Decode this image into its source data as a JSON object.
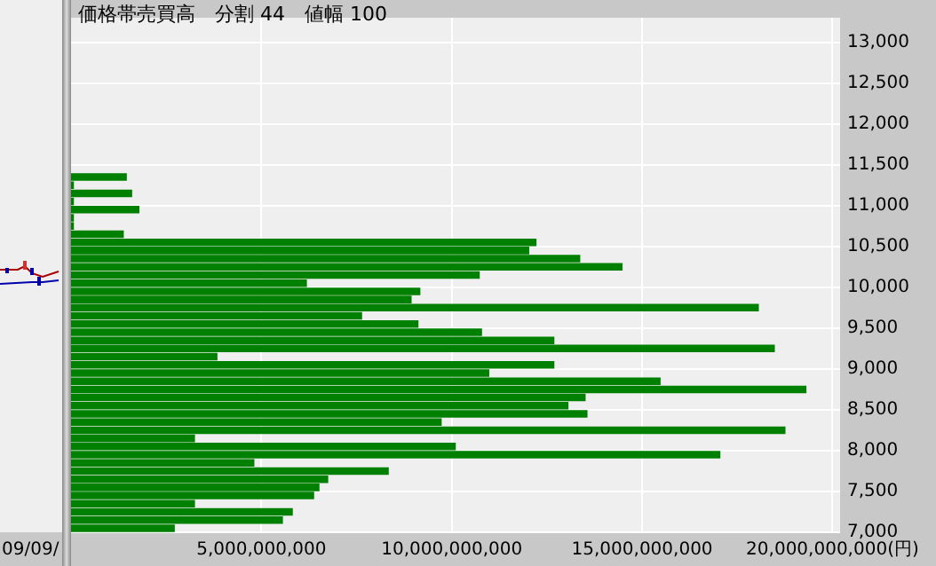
{
  "chart_data": {
    "type": "bar",
    "orientation": "horizontal",
    "title": "価格帯売買高　分割 44　値幅 100",
    "x": [
      11350,
      11250,
      11150,
      11050,
      10950,
      10850,
      10750,
      10650,
      10550,
      10450,
      10350,
      10250,
      10150,
      10050,
      9950,
      9850,
      9750,
      9650,
      9550,
      9450,
      9350,
      9250,
      9150,
      9050,
      8950,
      8850,
      8750,
      8650,
      8550,
      8450,
      8350,
      8250,
      8150,
      8050,
      7950,
      7850,
      7750,
      7650,
      7550,
      7450,
      7350,
      7250,
      7150,
      7050
    ],
    "values": [
      1450000000,
      60000000,
      1590000000,
      60000000,
      1780000000,
      60000000,
      60000000,
      1370000000,
      12210000000,
      12020000000,
      13360000000,
      14470000000,
      10720000000,
      6180000000,
      9160000000,
      8930000000,
      18050000000,
      7630000000,
      9110000000,
      10780000000,
      12680000000,
      18470000000,
      3830000000,
      12680000000,
      10970000000,
      15470000000,
      19300000000,
      13500000000,
      13050000000,
      13550000000,
      9720000000,
      18750000000,
      3240000000,
      10090000000,
      17040000000,
      4800000000,
      8330000000,
      6740000000,
      6510000000,
      6370000000,
      3240000000,
      5810000000,
      5550000000,
      2710000000
    ],
    "color": "#008000",
    "xlim": [
      0,
      20200000000
    ],
    "xticks": [
      {
        "value": 5000000000,
        "label": "5,000,000,000"
      },
      {
        "value": 10000000000,
        "label": "10,000,000,000"
      },
      {
        "value": 15000000000,
        "label": "15,000,000,000"
      },
      {
        "value": 20000000000,
        "label": "20,000,000,000(円)"
      }
    ],
    "ylim": [
      7000,
      13300
    ],
    "yticks": [
      {
        "value": 7000,
        "label": "7,000"
      },
      {
        "value": 7500,
        "label": "7,500"
      },
      {
        "value": 8000,
        "label": "8,000"
      },
      {
        "value": 8500,
        "label": "8,500"
      },
      {
        "value": 9000,
        "label": "9,000"
      },
      {
        "value": 9500,
        "label": "9,500"
      },
      {
        "value": 10000,
        "label": "10,000"
      },
      {
        "value": 10500,
        "label": "10,500"
      },
      {
        "value": 11000,
        "label": "11,000"
      },
      {
        "value": 11500,
        "label": "11,500"
      },
      {
        "value": 12000,
        "label": "12,000"
      },
      {
        "value": 12500,
        "label": "12,500"
      },
      {
        "value": 13000,
        "label": "13,000"
      }
    ],
    "grid": true,
    "legend": false,
    "annotations": [
      "09/09/"
    ]
  }
}
